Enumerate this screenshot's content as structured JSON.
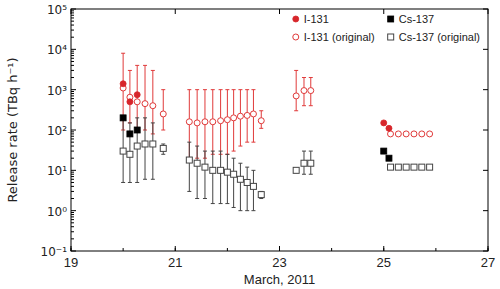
{
  "chart_data": {
    "type": "scatter",
    "x_label": "March, 2011",
    "y_label": "Release rate (TBq h⁻¹)",
    "log": "y",
    "xlim": [
      19,
      27
    ],
    "xticks": [
      19,
      21,
      23,
      25,
      27
    ],
    "ylim": [
      0.1,
      100000
    ],
    "yticks": [
      {
        "value": 0.1,
        "label": "10⁻¹"
      },
      {
        "value": 1,
        "label": "10⁰"
      },
      {
        "value": 10,
        "label": "10¹"
      },
      {
        "value": 100,
        "label": "10²"
      },
      {
        "value": 1000,
        "label": "10³"
      },
      {
        "value": 10000,
        "label": "10⁴"
      },
      {
        "value": 100000,
        "label": "10⁵"
      }
    ],
    "legend": "upper right",
    "series": [
      {
        "name": "I-131",
        "color": "#d7262b",
        "marker": "circle",
        "x": [
          20.0,
          20.13,
          20.27,
          25.0,
          25.1
        ],
        "values": [
          1400,
          500,
          750,
          150,
          110
        ]
      },
      {
        "name": "I-131 (original)",
        "color": "#e03a3a",
        "marker": "open_circle",
        "x": [
          20.0,
          20.13,
          20.27,
          20.42,
          20.57,
          20.77,
          21.27,
          21.42,
          21.57,
          21.72,
          21.87,
          22.0,
          22.12,
          22.25,
          22.38,
          22.5,
          22.65,
          23.32,
          23.47,
          23.6,
          25.13,
          25.28,
          25.43,
          25.58,
          25.73,
          25.88
        ],
        "values": [
          1100,
          650,
          500,
          450,
          400,
          250,
          160,
          150,
          160,
          160,
          170,
          180,
          200,
          220,
          230,
          250,
          170,
          700,
          950,
          950,
          80,
          80,
          80,
          80,
          80,
          80
        ],
        "error_range": [
          [
            100,
            8000
          ],
          [
            150,
            3000
          ],
          [
            100,
            4000
          ],
          [
            100,
            4000
          ],
          [
            80,
            3000
          ],
          [
            100,
            1000
          ],
          [
            20,
            1000
          ],
          [
            20,
            1000
          ],
          [
            20,
            1000
          ],
          [
            25,
            1000
          ],
          [
            25,
            1000
          ],
          [
            25,
            1000
          ],
          [
            30,
            1000
          ],
          [
            40,
            1000
          ],
          [
            50,
            1000
          ],
          [
            50,
            1000
          ],
          [
            110,
            300
          ],
          [
            300,
            3000
          ],
          [
            400,
            2000
          ],
          [
            400,
            2000
          ],
          null,
          null,
          null,
          null,
          null,
          null
        ]
      },
      {
        "name": "Cs-137",
        "color": "#000000",
        "marker": "square",
        "x": [
          20.0,
          20.13,
          20.27,
          25.0,
          25.1
        ],
        "values": [
          200,
          80,
          100,
          30,
          20
        ]
      },
      {
        "name": "Cs-137 (original)",
        "color": "#444444",
        "marker": "open_square",
        "x": [
          20.0,
          20.13,
          20.27,
          20.42,
          20.57,
          20.77,
          21.27,
          21.42,
          21.57,
          21.72,
          21.87,
          22.0,
          22.12,
          22.25,
          22.38,
          22.5,
          22.65,
          23.32,
          23.47,
          23.6,
          25.13,
          25.28,
          25.43,
          25.58,
          25.73,
          25.88
        ],
        "values": [
          30,
          25,
          40,
          45,
          45,
          35,
          18,
          15,
          12,
          10,
          10,
          9,
          8,
          6,
          5,
          4,
          2.5,
          10,
          15,
          15,
          12,
          12,
          12,
          12,
          12,
          12
        ],
        "error_range": [
          [
            5,
            200
          ],
          [
            5,
            150
          ],
          [
            5,
            200
          ],
          [
            6,
            200
          ],
          [
            6,
            150
          ],
          [
            25,
            45
          ],
          [
            3,
            50
          ],
          [
            2,
            40
          ],
          [
            2,
            30
          ],
          [
            1.5,
            30
          ],
          [
            1.5,
            30
          ],
          [
            1.5,
            25
          ],
          [
            1.2,
            20
          ],
          [
            1,
            15
          ],
          [
            1,
            12
          ],
          [
            1,
            10
          ],
          [
            2,
            3
          ],
          null,
          [
            8,
            30
          ],
          [
            8,
            30
          ],
          null,
          null,
          null,
          null,
          null,
          null
        ]
      }
    ]
  }
}
